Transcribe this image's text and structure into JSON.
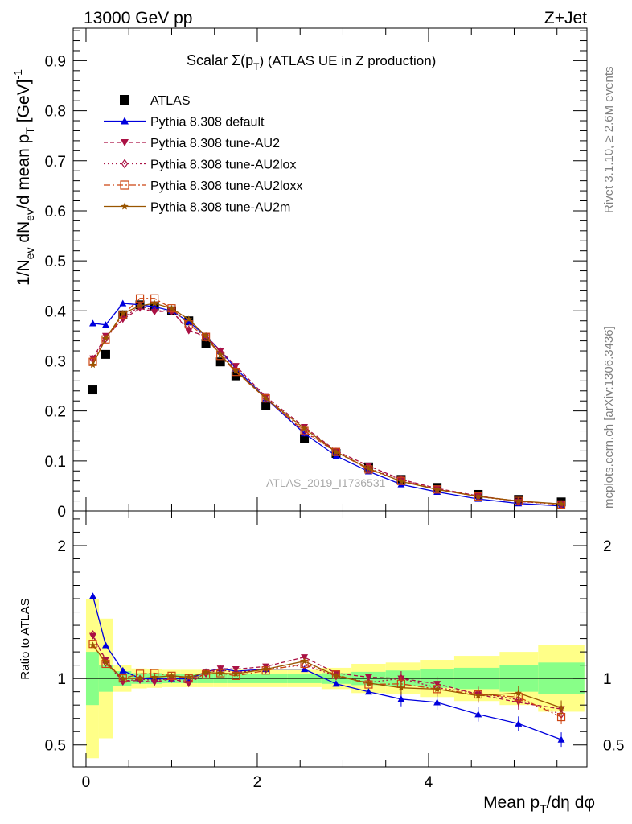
{
  "header": {
    "left": "13000 GeV pp",
    "right": "Z+Jet"
  },
  "side_labels": {
    "top": "Rivet 3.1.10, ≥ 2.6M events",
    "bottom": "mcplots.cern.ch [arXiv:1306.3436]"
  },
  "watermark": "ATLAS_2019_I1736531",
  "chart_data": {
    "type": "scatter",
    "title": "Scalar Σ(p_T) (ATLAS UE in Z production)",
    "title_parts": {
      "main": "Scalar Σ(p",
      "sub": "T",
      "tail": ") (ATLAS UE in Z production)"
    },
    "xlabel": "Mean p_T/dη dφ",
    "xlabel_parts": {
      "main": "Mean p",
      "sub": "T",
      "tail": "/dη dφ"
    },
    "ylabel": "1/N_ev dN_ev/d mean p_T [GeV]^-1",
    "ylabel_parts": {
      "a": "1/N",
      "a_sub": "ev",
      "b": " dN",
      "b_sub": "ev",
      "c": "/d mean p",
      "c_sub": "T",
      "d": " [GeV]",
      "d_sup": "-1"
    },
    "ratio_ylabel": "Ratio to ATLAS",
    "xlim": [
      -0.15,
      5.85
    ],
    "ylim": [
      0,
      0.965
    ],
    "ratio_ylim": [
      0.335,
      2.26
    ],
    "xticks": [
      0,
      2,
      4
    ],
    "xtick_labels": [
      "0",
      "2",
      "4"
    ],
    "yticks": [
      0,
      0.1,
      0.2,
      0.3,
      0.4,
      0.5,
      0.6,
      0.7,
      0.8,
      0.9
    ],
    "ytick_labels": [
      "0",
      "0.1",
      "0.2",
      "0.3",
      "0.4",
      "0.5",
      "0.6",
      "0.7",
      "0.8",
      "0.9"
    ],
    "ratio_yticks": [
      0.5,
      1,
      2
    ],
    "ratio_ytick_labels": [
      "0.5",
      "1",
      "2"
    ],
    "legend_position": "top-left",
    "x": [
      0.08,
      0.23,
      0.43,
      0.63,
      0.8,
      1.0,
      1.2,
      1.4,
      1.57,
      1.75,
      2.1,
      2.55,
      2.92,
      3.3,
      3.68,
      4.1,
      4.58,
      5.05,
      5.55
    ],
    "series": [
      {
        "name": "ATLAS",
        "color": "#000000",
        "marker": "square",
        "dash": "none",
        "values": [
          0.242,
          0.313,
          0.392,
          0.412,
          0.41,
          0.4,
          0.38,
          0.335,
          0.298,
          0.27,
          0.21,
          0.145,
          0.115,
          0.088,
          0.063,
          0.047,
          0.033,
          0.023,
          0.018
        ]
      },
      {
        "name": "Pythia 8.308 default",
        "color": "#0000dd",
        "marker": "triangle-up",
        "dash": "none",
        "values": [
          0.375,
          0.372,
          0.415,
          0.412,
          0.408,
          0.4,
          0.378,
          0.35,
          0.32,
          0.285,
          0.225,
          0.155,
          0.11,
          0.079,
          0.053,
          0.038,
          0.024,
          0.015,
          0.01
        ]
      },
      {
        "name": "Pythia 8.308 tune-AU2",
        "color": "#aa1144",
        "marker": "triangle-down",
        "dash": "5,3",
        "values": [
          0.305,
          0.35,
          0.383,
          0.405,
          0.398,
          0.4,
          0.36,
          0.35,
          0.32,
          0.29,
          0.228,
          0.168,
          0.12,
          0.09,
          0.063,
          0.045,
          0.03,
          0.019,
          0.014
        ]
      },
      {
        "name": "Pythia 8.308 tune-AU2lox",
        "color": "#aa1144",
        "marker": "diamond-open",
        "dash": "2,3",
        "values": [
          0.303,
          0.345,
          0.385,
          0.41,
          0.4,
          0.4,
          0.362,
          0.347,
          0.318,
          0.282,
          0.225,
          0.158,
          0.118,
          0.085,
          0.063,
          0.043,
          0.029,
          0.019,
          0.013
        ]
      },
      {
        "name": "Pythia 8.308 tune-AU2loxx",
        "color": "#cc4411",
        "marker": "square-open",
        "dash": "8,3,2,3",
        "values": [
          0.298,
          0.343,
          0.392,
          0.425,
          0.425,
          0.405,
          0.373,
          0.348,
          0.31,
          0.278,
          0.225,
          0.16,
          0.118,
          0.083,
          0.06,
          0.043,
          0.029,
          0.02,
          0.013
        ]
      },
      {
        "name": "Pythia 8.308 tune-AU2m",
        "color": "#995500",
        "marker": "star",
        "dash": "none",
        "values": [
          0.292,
          0.345,
          0.395,
          0.41,
          0.415,
          0.405,
          0.383,
          0.35,
          0.312,
          0.28,
          0.225,
          0.165,
          0.118,
          0.085,
          0.059,
          0.043,
          0.029,
          0.02,
          0.014
        ]
      }
    ],
    "ratio_series": [
      {
        "name": "Pythia 8.308 default",
        "values": [
          1.62,
          1.25,
          1.06,
          1.0,
          0.995,
          1.0,
          0.995,
          1.05,
          1.075,
          1.055,
          1.07,
          1.07,
          0.96,
          0.9,
          0.845,
          0.82,
          0.73,
          0.66,
          0.54
        ]
      },
      {
        "name": "Pythia 8.308 tune-AU2",
        "values": [
          1.32,
          1.14,
          0.98,
          0.985,
          0.97,
          1.0,
          0.96,
          1.045,
          1.075,
          1.07,
          1.09,
          1.16,
          1.04,
          1.01,
          1.0,
          0.96,
          0.88,
          0.82,
          0.77
        ]
      },
      {
        "name": "Pythia 8.308 tune-AU2lox",
        "values": [
          1.33,
          1.12,
          0.98,
          0.995,
          0.985,
          1.0,
          0.975,
          1.04,
          1.065,
          1.045,
          1.07,
          1.1,
          1.02,
          0.97,
          1.0,
          0.93,
          0.89,
          0.84,
          0.73
        ]
      },
      {
        "name": "Pythia 8.308 tune-AU2loxx",
        "values": [
          1.26,
          1.11,
          1.0,
          1.035,
          1.04,
          1.02,
          1.0,
          1.03,
          1.04,
          1.02,
          1.06,
          1.11,
          1.03,
          0.955,
          0.96,
          0.92,
          0.88,
          0.86,
          0.71
        ]
      },
      {
        "name": "Pythia 8.308 tune-AU2m",
        "values": [
          1.25,
          1.12,
          1.0,
          1.0,
          1.01,
          1.02,
          1.01,
          1.045,
          1.04,
          1.035,
          1.07,
          1.13,
          1.02,
          0.965,
          0.93,
          0.92,
          0.87,
          0.89,
          0.78
        ]
      }
    ],
    "band_edges": [
      0,
      0.15,
      0.31,
      0.53,
      0.71,
      0.89,
      1.1,
      1.3,
      1.49,
      1.65,
      1.85,
      2.35,
      2.75,
      3.1,
      3.5,
      3.9,
      4.3,
      4.83,
      5.28,
      5.82
    ],
    "band_green": [
      0.2,
      0.1,
      0.055,
      0.04,
      0.04,
      0.035,
      0.035,
      0.035,
      0.035,
      0.035,
      0.035,
      0.035,
      0.04,
      0.05,
      0.06,
      0.07,
      0.08,
      0.1,
      0.12
    ],
    "band_yellow": [
      0.6,
      0.45,
      0.1,
      0.075,
      0.07,
      0.065,
      0.065,
      0.065,
      0.065,
      0.065,
      0.065,
      0.065,
      0.08,
      0.11,
      0.12,
      0.14,
      0.17,
      0.2,
      0.25
    ]
  }
}
